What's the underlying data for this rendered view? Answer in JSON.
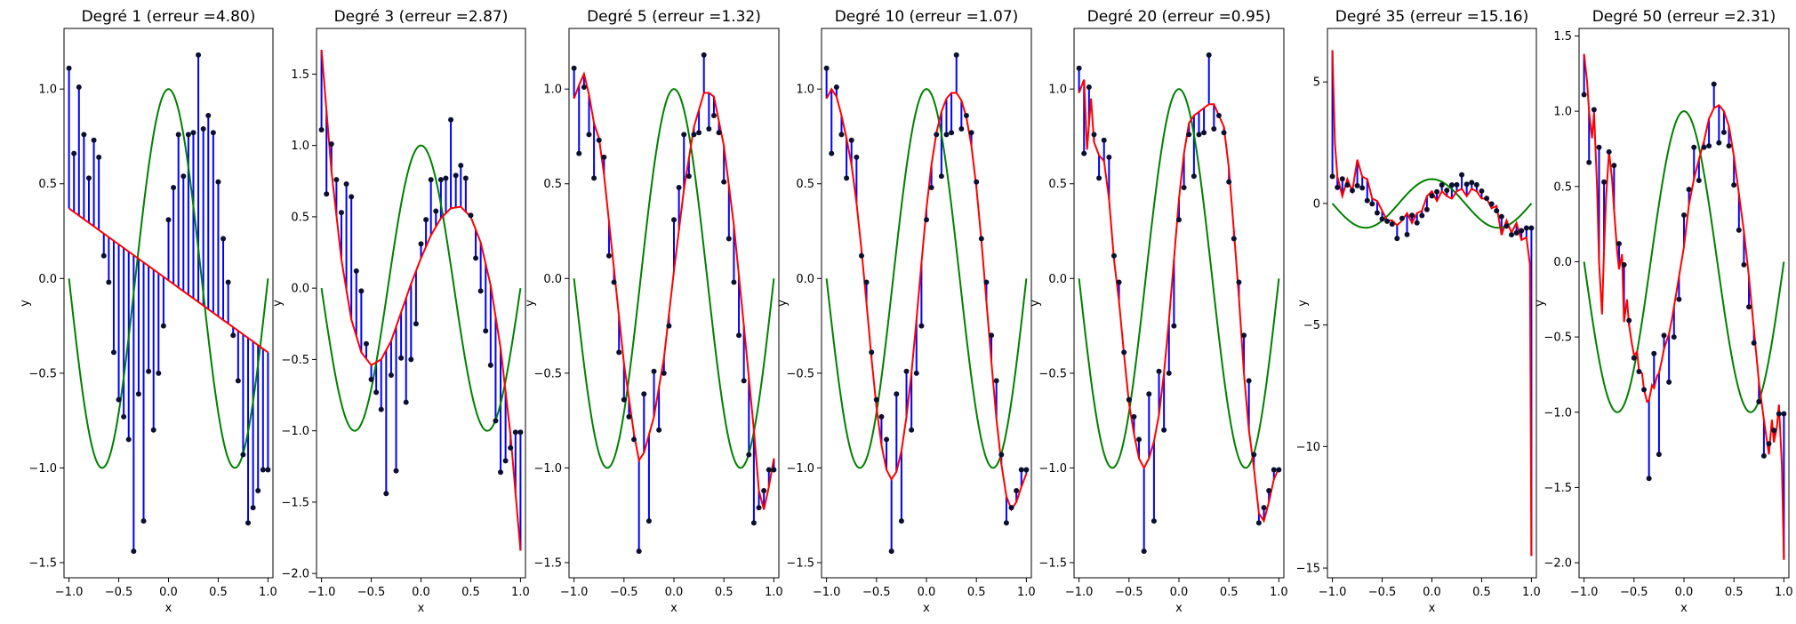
{
  "colors": {
    "data_points": "#0b1030",
    "residuals": "#0000ff",
    "fit": "#ff0000",
    "true_function": "#008000"
  },
  "shared": {
    "x_points": [
      -1.0,
      -0.95,
      -0.9,
      -0.85,
      -0.8,
      -0.75,
      -0.7,
      -0.65,
      -0.6,
      -0.55,
      -0.5,
      -0.45,
      -0.4,
      -0.35,
      -0.3,
      -0.25,
      -0.2,
      -0.15,
      -0.1,
      -0.05,
      0.0,
      0.05,
      0.1,
      0.15,
      0.2,
      0.25,
      0.3,
      0.35,
      0.4,
      0.45,
      0.5,
      0.55,
      0.6,
      0.65,
      0.7,
      0.75,
      0.8,
      0.85,
      0.9,
      0.95,
      1.0
    ],
    "y_points": [
      1.11,
      0.66,
      1.01,
      0.76,
      0.53,
      0.73,
      0.64,
      0.12,
      -0.02,
      -0.39,
      -0.64,
      -0.73,
      -0.85,
      -1.44,
      -0.61,
      -1.28,
      -0.49,
      -0.8,
      -0.5,
      -0.25,
      0.31,
      0.48,
      0.76,
      0.54,
      0.76,
      0.77,
      1.18,
      0.79,
      0.86,
      0.77,
      0.51,
      0.21,
      -0.02,
      -0.3,
      -0.54,
      -0.93,
      -1.29,
      -1.21,
      -1.12,
      -1.01,
      -1.01
    ],
    "true_function": "cos(1.5*pi*x)",
    "xlabel": "x",
    "ylabel": "y",
    "xticks": [
      "−1.0",
      "−0.5",
      "0.0",
      "0.5",
      "1.0"
    ]
  },
  "chart_data": [
    {
      "type": "line",
      "title": "Degré 1 (erreur =4.80)",
      "degree": 1,
      "xlim": [
        -1.05,
        1.05
      ],
      "ylim": [
        -1.58,
        1.32
      ],
      "yticks": [
        1.0,
        0.5,
        0.0,
        -0.5,
        -1.0,
        -1.5
      ],
      "ytick_labels": [
        "1.0",
        "0.5",
        "0.0",
        "−0.5",
        "−1.0",
        "−1.5"
      ],
      "fit_x": [
        -1.0,
        1.0
      ],
      "fit_y": [
        0.37,
        -0.39
      ]
    },
    {
      "type": "line",
      "title": "Degré 3 (erreur =2.87)",
      "degree": 3,
      "xlim": [
        -1.05,
        1.05
      ],
      "ylim": [
        -2.03,
        1.82
      ],
      "yticks": [
        1.5,
        1.0,
        0.5,
        0.0,
        -0.5,
        -1.0,
        -1.5,
        -2.0
      ],
      "ytick_labels": [
        "1.5",
        "1.0",
        "0.5",
        "0.0",
        "−0.5",
        "−1.0",
        "−1.5",
        "−2.0"
      ],
      "fit_x": [
        -1.0,
        -0.9,
        -0.8,
        -0.7,
        -0.6,
        -0.5,
        -0.4,
        -0.3,
        -0.2,
        -0.1,
        0.0,
        0.1,
        0.2,
        0.3,
        0.4,
        0.5,
        0.6,
        0.7,
        0.8,
        0.9,
        1.0
      ],
      "fit_y": [
        1.67,
        0.82,
        0.2,
        -0.22,
        -0.45,
        -0.54,
        -0.5,
        -0.37,
        -0.17,
        0.03,
        0.21,
        0.37,
        0.49,
        0.56,
        0.57,
        0.5,
        0.32,
        0.02,
        -0.42,
        -1.03,
        -1.84
      ]
    },
    {
      "type": "line",
      "title": "Degré 5 (erreur =1.32)",
      "degree": 5,
      "xlim": [
        -1.05,
        1.05
      ],
      "ylim": [
        -1.58,
        1.32
      ],
      "yticks": [
        1.0,
        0.5,
        0.0,
        -0.5,
        -1.0,
        -1.5
      ],
      "ytick_labels": [
        "1.0",
        "0.5",
        "0.0",
        "−0.5",
        "−1.0",
        "−1.5"
      ],
      "fit_x": [
        -1.0,
        -0.95,
        -0.9,
        -0.85,
        -0.8,
        -0.75,
        -0.7,
        -0.6,
        -0.5,
        -0.4,
        -0.35,
        -0.3,
        -0.2,
        -0.1,
        0.0,
        0.1,
        0.2,
        0.3,
        0.35,
        0.4,
        0.5,
        0.6,
        0.7,
        0.8,
        0.85,
        0.9,
        0.95,
        1.0
      ],
      "fit_y": [
        0.95,
        1.02,
        1.08,
        0.97,
        0.82,
        0.74,
        0.55,
        0.05,
        -0.45,
        -0.82,
        -0.96,
        -0.92,
        -0.73,
        -0.42,
        0.04,
        0.47,
        0.8,
        0.98,
        0.98,
        0.96,
        0.7,
        0.28,
        -0.25,
        -0.8,
        -1.12,
        -1.22,
        -1.1,
        -0.95
      ]
    },
    {
      "type": "line",
      "title": "Degré 10 (erreur =1.07)",
      "degree": 10,
      "xlim": [
        -1.05,
        1.05
      ],
      "ylim": [
        -1.58,
        1.32
      ],
      "yticks": [
        1.0,
        0.5,
        0.0,
        -0.5,
        -1.0,
        -1.5
      ],
      "ytick_labels": [
        "1.0",
        "0.5",
        "0.0",
        "−0.5",
        "−1.0",
        "−1.5"
      ],
      "fit_x": [
        -1.0,
        -0.95,
        -0.9,
        -0.85,
        -0.8,
        -0.75,
        -0.7,
        -0.65,
        -0.6,
        -0.55,
        -0.5,
        -0.45,
        -0.4,
        -0.35,
        -0.3,
        -0.25,
        -0.2,
        -0.15,
        -0.1,
        -0.05,
        0.0,
        0.05,
        0.1,
        0.15,
        0.2,
        0.25,
        0.3,
        0.35,
        0.4,
        0.45,
        0.5,
        0.55,
        0.6,
        0.65,
        0.7,
        0.75,
        0.8,
        0.85,
        0.9,
        0.95,
        1.0
      ],
      "fit_y": [
        0.95,
        1.0,
        0.96,
        0.86,
        0.74,
        0.6,
        0.4,
        0.15,
        -0.13,
        -0.42,
        -0.68,
        -0.88,
        -1.01,
        -1.06,
        -1.02,
        -0.91,
        -0.73,
        -0.5,
        -0.22,
        0.08,
        0.37,
        0.6,
        0.77,
        0.88,
        0.95,
        0.98,
        0.98,
        0.94,
        0.85,
        0.7,
        0.48,
        0.2,
        -0.12,
        -0.44,
        -0.74,
        -0.98,
        -1.15,
        -1.22,
        -1.18,
        -1.1,
        -1.03
      ]
    },
    {
      "type": "line",
      "title": "Degré 20 (erreur =0.95)",
      "degree": 20,
      "xlim": [
        -1.05,
        1.05
      ],
      "ylim": [
        -1.58,
        1.32
      ],
      "yticks": [
        1.0,
        0.5,
        0.0,
        -0.5,
        -1.0,
        -1.5
      ],
      "ytick_labels": [
        "1.0",
        "0.5",
        "0.0",
        "−0.5",
        "−1.0",
        "−1.5"
      ],
      "fit_x": [
        -1.0,
        -0.95,
        -0.92,
        -0.88,
        -0.85,
        -0.8,
        -0.75,
        -0.7,
        -0.65,
        -0.6,
        -0.55,
        -0.5,
        -0.45,
        -0.4,
        -0.35,
        -0.3,
        -0.25,
        -0.2,
        -0.15,
        -0.1,
        -0.05,
        0.0,
        0.05,
        0.1,
        0.15,
        0.2,
        0.25,
        0.3,
        0.35,
        0.4,
        0.45,
        0.5,
        0.55,
        0.6,
        0.65,
        0.7,
        0.75,
        0.8,
        0.85,
        0.9,
        0.95,
        1.0
      ],
      "fit_y": [
        0.98,
        1.05,
        0.68,
        0.95,
        0.72,
        0.65,
        0.62,
        0.42,
        0.1,
        -0.12,
        -0.4,
        -0.66,
        -0.82,
        -0.95,
        -1.0,
        -0.95,
        -0.86,
        -0.72,
        -0.5,
        -0.22,
        0.1,
        0.42,
        0.66,
        0.82,
        0.86,
        0.88,
        0.9,
        0.92,
        0.92,
        0.86,
        0.8,
        0.58,
        0.25,
        -0.1,
        -0.5,
        -0.8,
        -1.0,
        -1.24,
        -1.28,
        -1.18,
        -1.06,
        -1.0
      ]
    },
    {
      "type": "line",
      "title": "Degré 35 (erreur =15.16)",
      "degree": 35,
      "xlim": [
        -1.05,
        1.05
      ],
      "ylim": [
        -15.4,
        7.2
      ],
      "yticks": [
        5,
        0,
        -5,
        -10,
        -15
      ],
      "ytick_labels": [
        "5",
        "0",
        "−5",
        "−10",
        "−15"
      ],
      "fit_x": [
        -1.0,
        -0.975,
        -0.95,
        -0.9,
        -0.85,
        -0.8,
        -0.75,
        -0.7,
        -0.65,
        -0.6,
        -0.55,
        -0.5,
        -0.45,
        -0.4,
        -0.35,
        -0.3,
        -0.25,
        -0.2,
        -0.15,
        -0.1,
        -0.05,
        0.0,
        0.05,
        0.1,
        0.15,
        0.2,
        0.25,
        0.3,
        0.35,
        0.4,
        0.45,
        0.5,
        0.55,
        0.6,
        0.65,
        0.7,
        0.75,
        0.8,
        0.85,
        0.9,
        0.95,
        0.985,
        1.0
      ],
      "fit_y": [
        6.3,
        2.5,
        1.1,
        0.3,
        1.0,
        0.5,
        1.8,
        1.1,
        1.0,
        0.2,
        0.1,
        -0.3,
        -0.7,
        -0.7,
        -0.9,
        -0.7,
        -0.4,
        -0.8,
        -0.4,
        -0.3,
        0.3,
        0.5,
        0.1,
        0.5,
        0.3,
        0.2,
        0.5,
        0.6,
        0.3,
        0.6,
        0.5,
        0.2,
        0.2,
        -0.2,
        -0.1,
        -1.3,
        -0.7,
        -1.2,
        -0.8,
        -1.5,
        -1.4,
        -2.5,
        -14.5
      ]
    },
    {
      "type": "line",
      "title": "Degré 50 (erreur =2.31)",
      "degree": 50,
      "xlim": [
        -1.05,
        1.05
      ],
      "ylim": [
        -2.1,
        1.55
      ],
      "yticks": [
        1.5,
        1.0,
        0.5,
        0.0,
        -0.5,
        -1.0,
        -1.5,
        -2.0
      ],
      "ytick_labels": [
        "1.5",
        "1.0",
        "0.5",
        "0.0",
        "−0.5",
        "−1.0",
        "−1.5",
        "−2.0"
      ],
      "fit_x": [
        -1.0,
        -0.97,
        -0.95,
        -0.92,
        -0.9,
        -0.87,
        -0.85,
        -0.82,
        -0.8,
        -0.78,
        -0.75,
        -0.72,
        -0.7,
        -0.67,
        -0.65,
        -0.62,
        -0.6,
        -0.57,
        -0.55,
        -0.52,
        -0.5,
        -0.47,
        -0.45,
        -0.42,
        -0.4,
        -0.37,
        -0.35,
        -0.32,
        -0.3,
        -0.27,
        -0.25,
        -0.22,
        -0.2,
        -0.17,
        -0.15,
        -0.12,
        -0.1,
        -0.05,
        0.0,
        0.05,
        0.1,
        0.15,
        0.2,
        0.25,
        0.3,
        0.35,
        0.4,
        0.45,
        0.5,
        0.55,
        0.6,
        0.65,
        0.7,
        0.75,
        0.8,
        0.85,
        0.88,
        0.9,
        0.93,
        0.95,
        0.98,
        1.0
      ],
      "fit_y": [
        1.38,
        1.2,
        1.0,
        0.82,
        0.99,
        0.5,
        0.0,
        -0.35,
        0.08,
        0.42,
        0.73,
        0.55,
        0.35,
        0.08,
        -0.05,
        0.05,
        -0.4,
        -0.25,
        -0.42,
        -0.55,
        -0.62,
        -0.6,
        -0.72,
        -0.74,
        -0.85,
        -0.93,
        -0.92,
        -0.82,
        -0.84,
        -0.76,
        -0.74,
        -0.65,
        -0.58,
        -0.52,
        -0.48,
        -0.38,
        -0.3,
        -0.1,
        0.1,
        0.38,
        0.55,
        0.68,
        0.8,
        0.95,
        1.02,
        1.04,
        1.0,
        0.9,
        0.7,
        0.45,
        0.2,
        -0.1,
        -0.45,
        -0.8,
        -1.05,
        -1.28,
        -1.05,
        -1.2,
        -1.1,
        -0.95,
        -1.35,
        -1.98
      ]
    }
  ]
}
